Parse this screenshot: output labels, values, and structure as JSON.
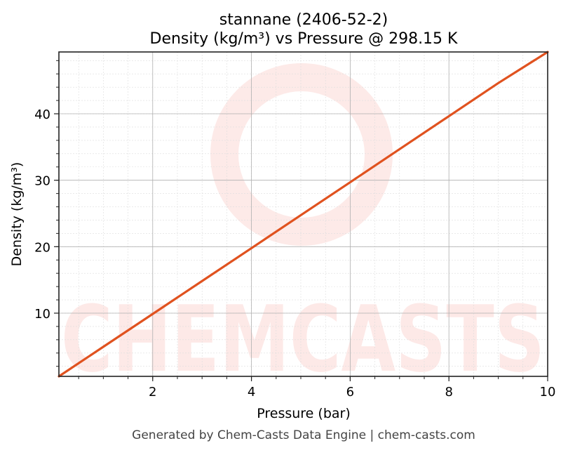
{
  "chart_data": {
    "type": "line",
    "title": "stannane (2406-52-2)",
    "subtitle": "Density (kg/m³) vs Pressure @ 298.15 K",
    "xlabel": "Pressure (bar)",
    "ylabel": "Density (kg/m³)",
    "xlim": [
      0.1,
      10
    ],
    "ylim": [
      0.49,
      49.3
    ],
    "x_ticks": [
      2,
      4,
      6,
      8,
      10
    ],
    "y_ticks": [
      10,
      20,
      30,
      40
    ],
    "x_minor_step": 0.5,
    "y_minor_step": 2,
    "grid": true,
    "series": [
      {
        "x": [
          0.1,
          1,
          2,
          3,
          4,
          5,
          6,
          7,
          8,
          9,
          10
        ],
        "values": [
          0.49,
          4.94,
          9.88,
          14.83,
          19.78,
          24.74,
          29.7,
          34.67,
          39.64,
          44.62,
          49.3
        ],
        "color": "#e0521f"
      }
    ],
    "watermark": "CHEMCASTS",
    "footer": "Generated by Chem-Casts Data Engine | chem-casts.com"
  }
}
